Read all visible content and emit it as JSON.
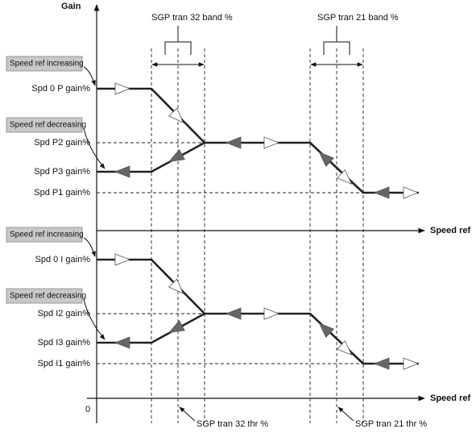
{
  "axis": {
    "gain": "Gain",
    "speed_ref_top": "Speed ref",
    "speed_ref_bottom": "Speed ref",
    "origin": "0"
  },
  "bands": {
    "tran32": "SGP tran 32 band %",
    "tran21": "SGP tran 21 band %"
  },
  "thresholds": {
    "tran32": "SGP tran 32 thr %",
    "tran21": "SGP tran 21 thr %"
  },
  "p_gain": {
    "increasing": "Speed ref increasing",
    "decreasing": "Speed ref decreasing",
    "levels": [
      "Spd 0 P gain%",
      "Spd P2 gain%",
      "Spd P3 gain%",
      "Spd P1 gain%"
    ]
  },
  "i_gain": {
    "increasing": "Speed ref increasing",
    "decreasing": "Speed ref decreasing",
    "levels": [
      "Spd 0 I gain%",
      "Spd I2 gain%",
      "Spd I3 gain%",
      "Spd I1 gain%"
    ]
  }
}
